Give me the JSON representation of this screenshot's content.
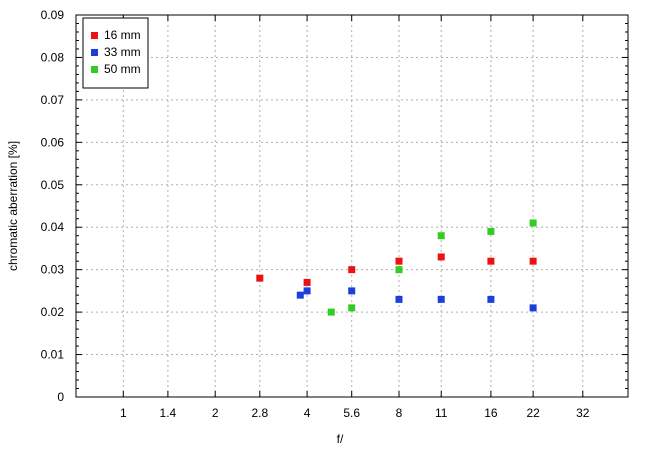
{
  "chart_data": {
    "type": "scatter",
    "title": "",
    "xlabel": "f/",
    "ylabel": "chromatic  aberration [%]",
    "x_scale": "log2",
    "x_ticks": [
      1,
      1.4,
      2,
      2.8,
      4,
      5.6,
      8,
      11,
      16,
      22,
      32
    ],
    "x_tick_labels": [
      "1",
      "1.4",
      "2",
      "2.8",
      "4",
      "5.6",
      "8",
      "11",
      "16",
      "22",
      "32"
    ],
    "xlim": [
      0.7,
      45
    ],
    "y_ticks": [
      0,
      0.01,
      0.02,
      0.03,
      0.04,
      0.05,
      0.06,
      0.07,
      0.08,
      0.09
    ],
    "y_tick_labels": [
      "0",
      "0.01",
      "0.02",
      "0.03",
      "0.04",
      "0.05",
      "0.06",
      "0.07",
      "0.08",
      "0.09"
    ],
    "ylim": [
      0,
      0.09
    ],
    "grid": true,
    "legend_position": "top-left",
    "series": [
      {
        "name": "16 mm",
        "color": "#ee1111",
        "points": [
          {
            "x": 2.8,
            "y": 0.028
          },
          {
            "x": 4,
            "y": 0.027
          },
          {
            "x": 5.6,
            "y": 0.03
          },
          {
            "x": 8,
            "y": 0.032
          },
          {
            "x": 11,
            "y": 0.033
          },
          {
            "x": 16,
            "y": 0.032
          },
          {
            "x": 22,
            "y": 0.032
          }
        ]
      },
      {
        "name": "33 mm",
        "color": "#1a3fdd",
        "points": [
          {
            "x": 3.8,
            "y": 0.024
          },
          {
            "x": 4,
            "y": 0.025
          },
          {
            "x": 5.6,
            "y": 0.025
          },
          {
            "x": 8,
            "y": 0.023
          },
          {
            "x": 11,
            "y": 0.023
          },
          {
            "x": 16,
            "y": 0.023
          },
          {
            "x": 22,
            "y": 0.021
          }
        ]
      },
      {
        "name": "50 mm",
        "color": "#33cc22",
        "points": [
          {
            "x": 4.8,
            "y": 0.02
          },
          {
            "x": 5.6,
            "y": 0.021
          },
          {
            "x": 8,
            "y": 0.03
          },
          {
            "x": 11,
            "y": 0.038
          },
          {
            "x": 16,
            "y": 0.039
          },
          {
            "x": 22,
            "y": 0.041
          }
        ]
      }
    ]
  }
}
